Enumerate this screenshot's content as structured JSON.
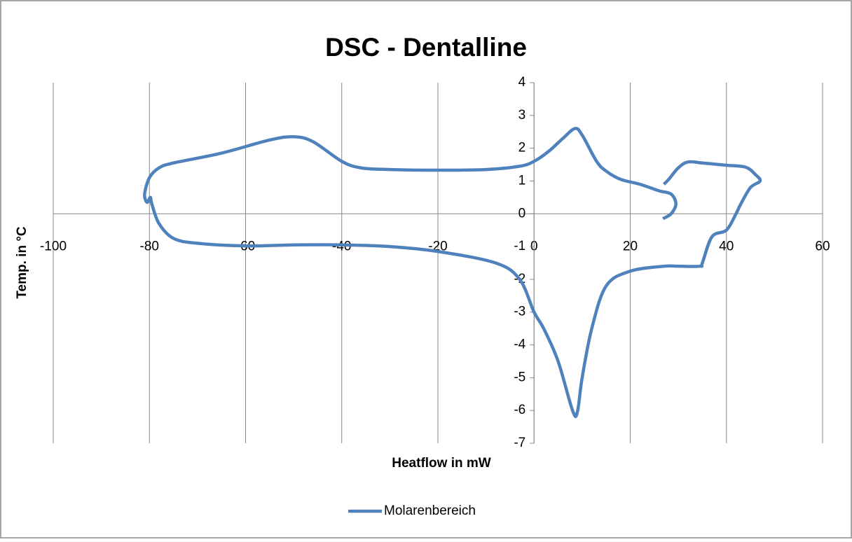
{
  "chart_data": {
    "type": "line",
    "title": "DSC - Dentalline",
    "xlabel": "Heatflow in mW",
    "ylabel": "Temp. in °C",
    "xlim": [
      -100,
      60
    ],
    "xticks": [
      -100,
      -80,
      -60,
      -40,
      -20,
      0,
      20,
      40,
      60
    ],
    "ylim": [
      -7,
      4
    ],
    "yticks": [
      -7,
      -6,
      -5,
      -4,
      -3,
      -2,
      -1,
      0,
      1,
      2,
      3,
      4
    ],
    "grid": true,
    "legend": "bottom",
    "series": [
      {
        "name": "Molarenbereich",
        "color": "#4f81bd",
        "x": [
          27,
          28,
          30,
          32,
          35,
          40,
          44,
          46,
          47,
          45,
          43,
          42,
          40,
          37,
          35,
          34.5,
          30,
          27,
          20,
          15,
          12,
          10,
          9,
          8,
          5,
          2,
          0,
          -3,
          -8,
          -20,
          -30,
          -40,
          -50,
          -60,
          -70,
          -75,
          -78,
          -79.5,
          -79.8,
          -80.5,
          -81,
          -80,
          -78,
          -75,
          -65,
          -55,
          -50,
          -46,
          -40,
          -36,
          -30,
          -20,
          -10,
          -3,
          0,
          3,
          6,
          8.5,
          10,
          13,
          15,
          18,
          22,
          26,
          28.5,
          29.5,
          28.5,
          26.8
        ],
        "values": [
          0.9,
          1.05,
          1.4,
          1.58,
          1.55,
          1.48,
          1.42,
          1.2,
          1.0,
          0.8,
          0.3,
          0,
          -0.5,
          -0.7,
          -1.5,
          -1.6,
          -1.6,
          -1.6,
          -1.75,
          -2.2,
          -3.5,
          -5,
          -6.05,
          -6,
          -4.5,
          -3.5,
          -3,
          -2,
          -1.5,
          -1.15,
          -1,
          -0.95,
          -0.95,
          -0.98,
          -0.9,
          -0.75,
          -0.3,
          0.3,
          0.5,
          0.35,
          0.6,
          1.1,
          1.4,
          1.55,
          1.85,
          2.25,
          2.35,
          2.2,
          1.6,
          1.4,
          1.35,
          1.33,
          1.35,
          1.45,
          1.6,
          1.9,
          2.3,
          2.6,
          2.4,
          1.6,
          1.3,
          1.05,
          0.9,
          0.7,
          0.6,
          0.3,
          0,
          -0.15
        ]
      }
    ]
  }
}
